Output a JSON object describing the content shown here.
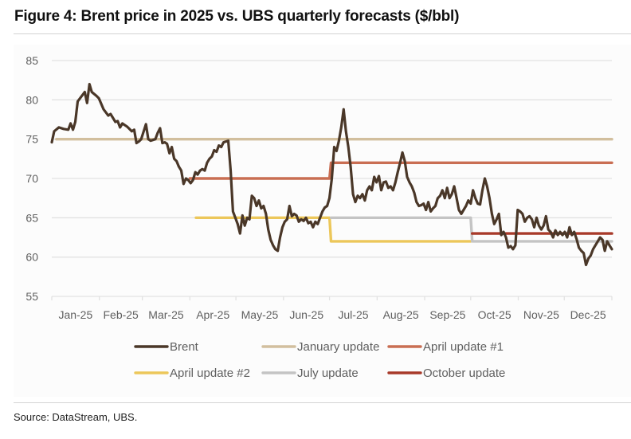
{
  "title": "Figure 4: Brent price in 2025 vs. UBS quarterly forecasts ($/bbl)",
  "source": "Source: DataStream, UBS.",
  "chart_data": {
    "type": "line",
    "title": "Figure 4: Brent price in 2025 vs. UBS quarterly forecasts ($/bbl)",
    "xlabel": "",
    "ylabel": "",
    "ylim": [
      55,
      85
    ],
    "yticks": [
      55,
      60,
      65,
      70,
      75,
      80,
      85
    ],
    "xlim_days": [
      0,
      365
    ],
    "xticks": [
      {
        "label": "Jan-25",
        "day": 0
      },
      {
        "label": "Feb-25",
        "day": 31
      },
      {
        "label": "Mar-25",
        "day": 59
      },
      {
        "label": "Apr-25",
        "day": 90
      },
      {
        "label": "May-25",
        "day": 120
      },
      {
        "label": "Jun-25",
        "day": 151
      },
      {
        "label": "Jul-25",
        "day": 181
      },
      {
        "label": "Aug-25",
        "day": 212
      },
      {
        "label": "Sep-25",
        "day": 243
      },
      {
        "label": "Oct-25",
        "day": 273
      },
      {
        "label": "Nov-25",
        "day": 304
      },
      {
        "label": "Dec-25",
        "day": 334
      }
    ],
    "grid": true,
    "legend_position": "bottom",
    "series": [
      {
        "name": "Brent",
        "color": "#4a3728",
        "points": [
          [
            0,
            74.6
          ],
          [
            1,
            76.0
          ],
          [
            3,
            76.5
          ],
          [
            5,
            76.3
          ],
          [
            7,
            76.2
          ],
          [
            8,
            77.0
          ],
          [
            9,
            76.2
          ],
          [
            10,
            77.2
          ],
          [
            11,
            79.8
          ],
          [
            13,
            80.6
          ],
          [
            14,
            81.0
          ],
          [
            15,
            79.6
          ],
          [
            16,
            82.0
          ],
          [
            17,
            81.0
          ],
          [
            19,
            80.5
          ],
          [
            20,
            80.2
          ],
          [
            22,
            78.8
          ],
          [
            24,
            78.0
          ],
          [
            25,
            78.2
          ],
          [
            27,
            77.2
          ],
          [
            28,
            77.3
          ],
          [
            29,
            76.5
          ],
          [
            30,
            77.0
          ],
          [
            32,
            76.6
          ],
          [
            34,
            76.0
          ],
          [
            35,
            76.2
          ],
          [
            36,
            74.5
          ],
          [
            37,
            74.7
          ],
          [
            38,
            75.0
          ],
          [
            40,
            76.9
          ],
          [
            41,
            75.0
          ],
          [
            42,
            74.8
          ],
          [
            44,
            75.0
          ],
          [
            45,
            75.8
          ],
          [
            46,
            76.4
          ],
          [
            47,
            74.5
          ],
          [
            48,
            74.6
          ],
          [
            49,
            74.4
          ],
          [
            50,
            73.2
          ],
          [
            51,
            74.0
          ],
          [
            52,
            72.5
          ],
          [
            53,
            72.2
          ],
          [
            54,
            71.5
          ],
          [
            55,
            71.0
          ],
          [
            56,
            69.3
          ],
          [
            57,
            70.0
          ],
          [
            58,
            69.8
          ],
          [
            59,
            69.4
          ],
          [
            60,
            69.8
          ],
          [
            61,
            70.8
          ],
          [
            62,
            70.5
          ],
          [
            63,
            71.0
          ],
          [
            64,
            71.2
          ],
          [
            65,
            71.0
          ],
          [
            66,
            72.0
          ],
          [
            67,
            72.5
          ],
          [
            68,
            72.8
          ],
          [
            69,
            73.6
          ],
          [
            70,
            73.4
          ],
          [
            71,
            74.2
          ],
          [
            72,
            74.0
          ],
          [
            73,
            74.6
          ],
          [
            74,
            74.7
          ],
          [
            75,
            74.8
          ],
          [
            76,
            71.0
          ],
          [
            77,
            65.8
          ],
          [
            78,
            65.0
          ],
          [
            79,
            64.2
          ],
          [
            80,
            63.0
          ],
          [
            81,
            65.3
          ],
          [
            82,
            64.0
          ],
          [
            83,
            65.0
          ],
          [
            84,
            64.8
          ],
          [
            85,
            67.8
          ],
          [
            86,
            67.5
          ],
          [
            87,
            66.5
          ],
          [
            88,
            67.2
          ],
          [
            89,
            66.2
          ],
          [
            90,
            66.5
          ],
          [
            91,
            65.5
          ],
          [
            92,
            63.5
          ],
          [
            93,
            62.2
          ],
          [
            94,
            61.5
          ],
          [
            95,
            61.0
          ],
          [
            96,
            60.8
          ],
          [
            97,
            62.5
          ],
          [
            98,
            63.8
          ],
          [
            99,
            64.5
          ],
          [
            100,
            64.8
          ],
          [
            101,
            66.5
          ],
          [
            102,
            65.2
          ],
          [
            103,
            65.5
          ],
          [
            104,
            65.3
          ],
          [
            105,
            64.5
          ],
          [
            106,
            64.8
          ],
          [
            107,
            64.6
          ],
          [
            108,
            65.0
          ],
          [
            109,
            64.3
          ],
          [
            110,
            64.5
          ],
          [
            111,
            63.8
          ],
          [
            112,
            64.5
          ],
          [
            113,
            64.2
          ],
          [
            114,
            65.0
          ],
          [
            115,
            65.8
          ],
          [
            116,
            66.3
          ],
          [
            117,
            66.5
          ],
          [
            118,
            67.5
          ],
          [
            119,
            70.0
          ],
          [
            120,
            74.0
          ],
          [
            121,
            73.5
          ],
          [
            122,
            74.8
          ],
          [
            123,
            76.5
          ],
          [
            124,
            78.8
          ],
          [
            125,
            76.0
          ],
          [
            126,
            74.0
          ],
          [
            127,
            71.5
          ],
          [
            128,
            68.0
          ],
          [
            129,
            67.0
          ],
          [
            130,
            67.8
          ],
          [
            131,
            67.5
          ],
          [
            132,
            68.0
          ],
          [
            133,
            67.2
          ],
          [
            134,
            68.5
          ],
          [
            135,
            69.0
          ],
          [
            136,
            68.5
          ],
          [
            137,
            70.2
          ],
          [
            138,
            69.5
          ],
          [
            139,
            70.3
          ],
          [
            140,
            68.5
          ],
          [
            141,
            69.5
          ],
          [
            142,
            69.6
          ],
          [
            143,
            68.8
          ],
          [
            144,
            69.0
          ],
          [
            145,
            68.5
          ],
          [
            146,
            69.5
          ],
          [
            147,
            70.8
          ],
          [
            148,
            72.0
          ],
          [
            149,
            73.3
          ],
          [
            150,
            72.2
          ],
          [
            151,
            70.2
          ],
          [
            152,
            69.5
          ],
          [
            153,
            69.0
          ],
          [
            154,
            68.2
          ],
          [
            155,
            67.0
          ],
          [
            156,
            66.5
          ],
          [
            157,
            66.6
          ],
          [
            158,
            66.8
          ],
          [
            159,
            66.0
          ],
          [
            160,
            67.0
          ],
          [
            161,
            65.8
          ],
          [
            162,
            66.2
          ],
          [
            163,
            66.5
          ],
          [
            164,
            67.5
          ],
          [
            165,
            67.8
          ],
          [
            166,
            68.5
          ],
          [
            167,
            67.5
          ],
          [
            168,
            68.8
          ],
          [
            169,
            67.5
          ],
          [
            170,
            68.0
          ],
          [
            171,
            69.0
          ],
          [
            172,
            67.5
          ],
          [
            173,
            66.0
          ],
          [
            174,
            65.5
          ],
          [
            175,
            66.0
          ],
          [
            176,
            66.5
          ],
          [
            177,
            67.2
          ],
          [
            178,
            66.8
          ],
          [
            179,
            68.5
          ],
          [
            180,
            67.5
          ],
          [
            181,
            66.8
          ],
          [
            182,
            66.7
          ],
          [
            183,
            68.5
          ],
          [
            184,
            70.0
          ],
          [
            185,
            69.0
          ],
          [
            186,
            67.5
          ],
          [
            187,
            65.5
          ],
          [
            188,
            64.2
          ],
          [
            189,
            64.8
          ],
          [
            190,
            65.5
          ],
          [
            191,
            62.8
          ],
          [
            192,
            63.2
          ],
          [
            193,
            62.5
          ],
          [
            194,
            61.2
          ],
          [
            195,
            61.4
          ],
          [
            196,
            61.0
          ],
          [
            197,
            61.5
          ],
          [
            198,
            66.0
          ],
          [
            199,
            65.8
          ],
          [
            200,
            65.5
          ],
          [
            201,
            64.5
          ],
          [
            202,
            65.0
          ],
          [
            203,
            65.2
          ],
          [
            204,
            64.8
          ],
          [
            205,
            63.8
          ],
          [
            206,
            65.0
          ],
          [
            207,
            64.0
          ],
          [
            208,
            63.5
          ],
          [
            209,
            64.0
          ],
          [
            210,
            65.2
          ],
          [
            211,
            63.5
          ],
          [
            212,
            63.2
          ],
          [
            213,
            62.5
          ],
          [
            214,
            63.4
          ],
          [
            215,
            62.8
          ],
          [
            216,
            63.2
          ],
          [
            217,
            62.8
          ],
          [
            218,
            63.2
          ],
          [
            219,
            62.5
          ],
          [
            220,
            63.8
          ],
          [
            221,
            62.8
          ],
          [
            222,
            63.2
          ],
          [
            223,
            62.3
          ],
          [
            224,
            61.2
          ],
          [
            225,
            60.8
          ],
          [
            226,
            60.5
          ],
          [
            227,
            59.0
          ],
          [
            228,
            59.8
          ],
          [
            229,
            60.2
          ],
          [
            230,
            61.0
          ],
          [
            231,
            61.5
          ],
          [
            232,
            62.0
          ],
          [
            233,
            62.5
          ],
          [
            234,
            62.2
          ],
          [
            235,
            60.8
          ],
          [
            236,
            62.0
          ],
          [
            237,
            61.5
          ],
          [
            238,
            61.0
          ]
        ]
      },
      {
        "name": "January update",
        "color": "#d2bf9e",
        "points": [
          [
            3,
            75
          ],
          [
            365,
            75
          ]
        ]
      },
      {
        "name": "April update #1",
        "color": "#c96e53",
        "points": [
          [
            90,
            70
          ],
          [
            181,
            70
          ],
          [
            182,
            72
          ],
          [
            365,
            72
          ]
        ]
      },
      {
        "name": "April update #2",
        "color": "#ecc75a",
        "points": [
          [
            94,
            65
          ],
          [
            181,
            65
          ],
          [
            182,
            62
          ],
          [
            273,
            62
          ]
        ]
      },
      {
        "name": "July update",
        "color": "#c4c4c4",
        "points": [
          [
            182,
            65
          ],
          [
            273,
            65
          ],
          [
            274,
            62
          ],
          [
            365,
            62
          ]
        ]
      },
      {
        "name": "October update",
        "color": "#a83a2a",
        "points": [
          [
            274,
            63
          ],
          [
            365,
            63
          ]
        ]
      }
    ],
    "notes": "Brent daily series; points are [trading-day index, $/bbl] approximations read from the chart."
  },
  "legend": [
    {
      "label": "Brent",
      "color": "#4a3728"
    },
    {
      "label": "January update",
      "color": "#d2bf9e"
    },
    {
      "label": "April update #1",
      "color": "#c96e53"
    },
    {
      "label": "April update #2",
      "color": "#ecc75a"
    },
    {
      "label": "July update",
      "color": "#c4c4c4"
    },
    {
      "label": "October update",
      "color": "#a83a2a"
    }
  ]
}
